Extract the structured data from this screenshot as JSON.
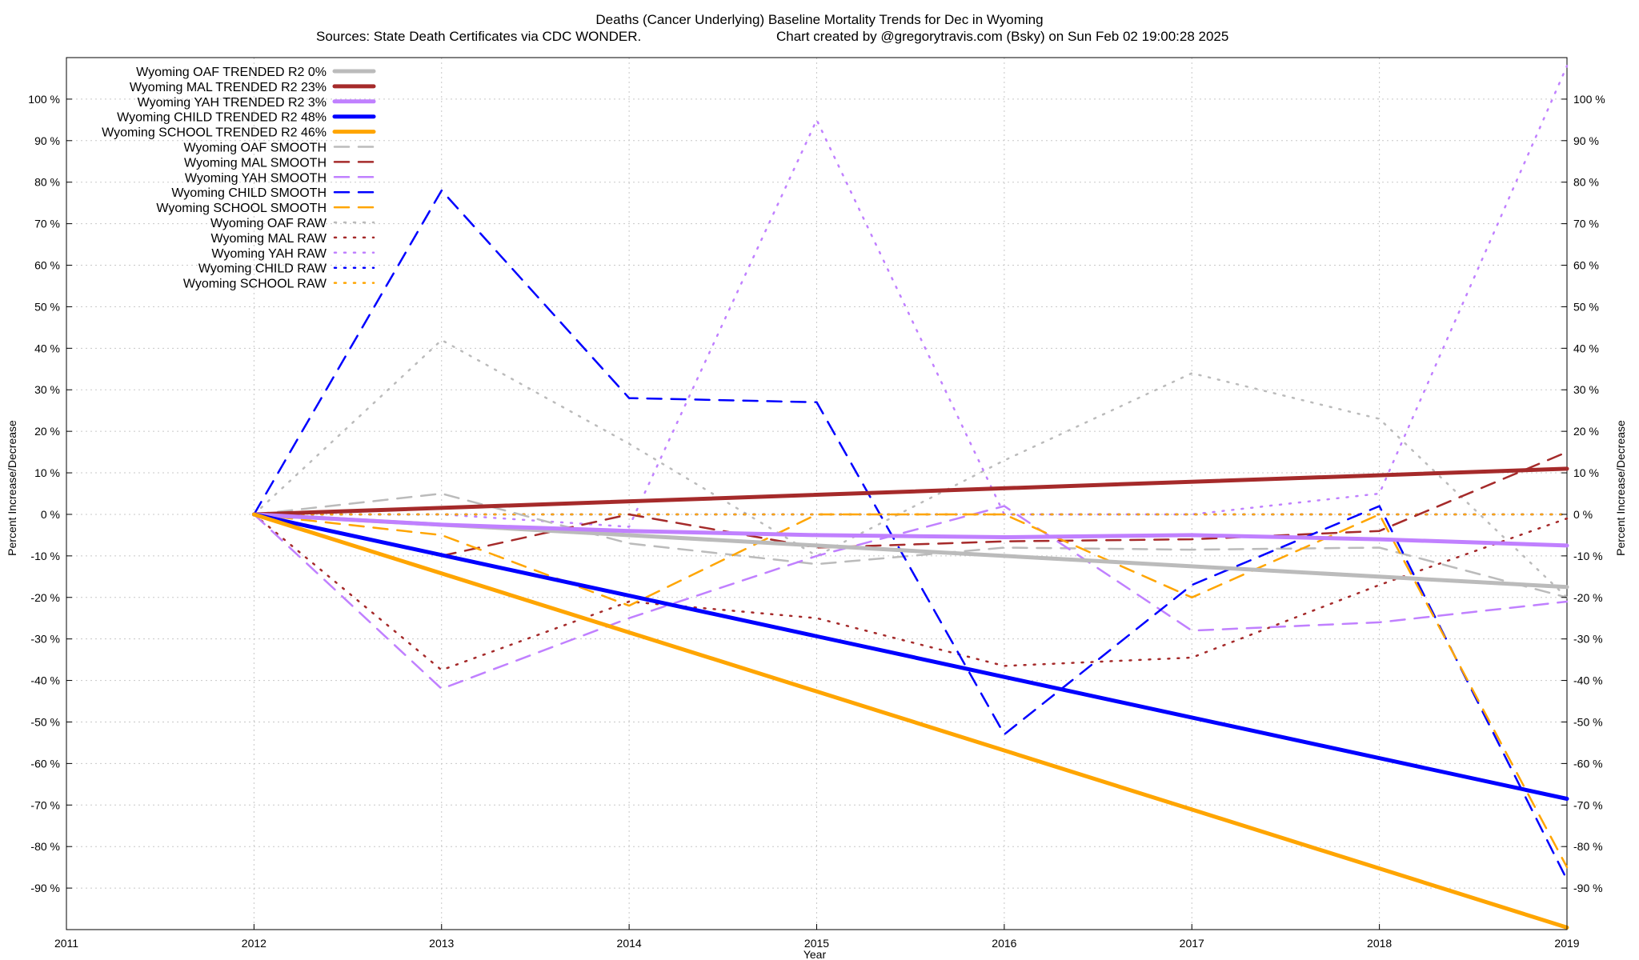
{
  "chart_data": {
    "type": "line",
    "title": "Deaths (Cancer Underlying)  Baseline Mortality Trends for Dec in Wyoming",
    "subtitle_left": "Sources: State Death Certificates via CDC WONDER.",
    "subtitle_right": "Chart created by @gregorytravis.com (Bsky) on Sun Feb 02 19:00:28 2025",
    "xlabel": "Year",
    "ylabel": "Percent Increase/Decrease",
    "xlim": [
      2011,
      2019
    ],
    "ylim": [
      -100,
      110
    ],
    "x_ticks": [
      "2011",
      "2012",
      "2013",
      "2014",
      "2015",
      "2016",
      "2017",
      "2018",
      "2019"
    ],
    "y_ticks": [
      {
        "v": 100,
        "label": "100 %"
      },
      {
        "v": 90,
        "label": "90 %"
      },
      {
        "v": 80,
        "label": "80 %"
      },
      {
        "v": 70,
        "label": "70 %"
      },
      {
        "v": 60,
        "label": "60 %"
      },
      {
        "v": 50,
        "label": "50 %"
      },
      {
        "v": 40,
        "label": "40 %"
      },
      {
        "v": 30,
        "label": "30 %"
      },
      {
        "v": 20,
        "label": "20 %"
      },
      {
        "v": 10,
        "label": "10 %"
      },
      {
        "v": 0,
        "label": "0 %"
      },
      {
        "v": -10,
        "label": "-10 %"
      },
      {
        "v": -20,
        "label": "-20 %"
      },
      {
        "v": -30,
        "label": "-30 %"
      },
      {
        "v": -40,
        "label": "-40 %"
      },
      {
        "v": -50,
        "label": "-50 %"
      },
      {
        "v": -60,
        "label": "-60 %"
      },
      {
        "v": -70,
        "label": "-70 %"
      },
      {
        "v": -80,
        "label": "-80 %"
      },
      {
        "v": -90,
        "label": "-90 %"
      }
    ],
    "grid": true,
    "legend_position": "top-left",
    "series": [
      {
        "name": "Wyoming OAF TRENDED R2  0%",
        "color": "#bbbbbb",
        "style": "solid",
        "x": [
          2012,
          2019
        ],
        "y": [
          0,
          -17.5
        ]
      },
      {
        "name": "Wyoming MAL TRENDED R2  23%",
        "color": "#a52a2a",
        "style": "solid",
        "x": [
          2012,
          2019
        ],
        "y": [
          0,
          11
        ]
      },
      {
        "name": "Wyoming YAH TRENDED R2  3%",
        "color": "#c080ff",
        "style": "solid",
        "x": [
          2012,
          2013,
          2014,
          2015,
          2016,
          2017,
          2018,
          2019
        ],
        "y": [
          0,
          -2.5,
          -4,
          -5,
          -5.5,
          -5,
          -6,
          -7.5
        ]
      },
      {
        "name": "Wyoming CHILD TRENDED R2  48%",
        "color": "#0000ff",
        "style": "solid",
        "x": [
          2012,
          2019
        ],
        "y": [
          0,
          -68.5
        ]
      },
      {
        "name": "Wyoming SCHOOL TRENDED R2  46%",
        "color": "#ffa500",
        "style": "solid",
        "x": [
          2012,
          2019
        ],
        "y": [
          0,
          -99.5
        ]
      },
      {
        "name": "Wyoming OAF SMOOTH",
        "color": "#bbbbbb",
        "style": "dashed",
        "x": [
          2012,
          2013,
          2014,
          2015,
          2016,
          2017,
          2018,
          2019
        ],
        "y": [
          0,
          5,
          -7,
          -12,
          -8,
          -8.5,
          -8,
          -20
        ]
      },
      {
        "name": "Wyoming MAL SMOOTH",
        "color": "#a52a2a",
        "style": "dashed",
        "x": [
          2012,
          2013,
          2014,
          2015,
          2016,
          2017,
          2018,
          2019
        ],
        "y": [
          0,
          -10,
          0,
          -8,
          -6.5,
          -6,
          -4,
          15
        ]
      },
      {
        "name": "Wyoming YAH SMOOTH",
        "color": "#c080ff",
        "style": "dashed",
        "x": [
          2012,
          2013,
          2014,
          2015,
          2016,
          2017,
          2018,
          2019
        ],
        "y": [
          0,
          -42,
          -25,
          -10,
          2,
          -28,
          -26,
          -21
        ]
      },
      {
        "name": "Wyoming CHILD SMOOTH",
        "color": "#0000ff",
        "style": "dashed",
        "x": [
          2012,
          2013,
          2014,
          2015,
          2016,
          2017,
          2018,
          2019
        ],
        "y": [
          0,
          78,
          28,
          27,
          -53,
          -17,
          2,
          -88
        ]
      },
      {
        "name": "Wyoming SCHOOL SMOOTH",
        "color": "#ffa500",
        "style": "dashed",
        "x": [
          2012,
          2013,
          2014,
          2015,
          2016,
          2017,
          2018,
          2019
        ],
        "y": [
          0,
          -5,
          -22,
          0,
          0,
          -20,
          0,
          -85
        ]
      },
      {
        "name": "Wyoming OAF RAW",
        "color": "#bbbbbb",
        "style": "dotted",
        "x": [
          2012,
          2013,
          2014,
          2015,
          2016,
          2017,
          2018,
          2019
        ],
        "y": [
          0,
          42,
          17,
          -10,
          13,
          34,
          23,
          -20
        ]
      },
      {
        "name": "Wyoming MAL RAW",
        "color": "#a52a2a",
        "style": "dotted",
        "x": [
          2012,
          2013,
          2014,
          2015,
          2016,
          2017,
          2018,
          2019
        ],
        "y": [
          0,
          -37.5,
          -21,
          -25,
          -36.5,
          -34.5,
          -17,
          -1
        ]
      },
      {
        "name": "Wyoming YAH RAW",
        "color": "#c080ff",
        "style": "dotted",
        "x": [
          2012,
          2013,
          2014,
          2015,
          2016,
          2017,
          2018,
          2019
        ],
        "y": [
          0,
          0,
          -3,
          95,
          0,
          0,
          5,
          108
        ]
      },
      {
        "name": "Wyoming CHILD RAW",
        "color": "#0000ff",
        "style": "dotted",
        "x": [
          2012,
          2013,
          2014,
          2015,
          2016,
          2017,
          2018,
          2019
        ],
        "y": [
          0,
          0,
          0,
          0,
          0,
          0,
          0,
          0
        ]
      },
      {
        "name": "Wyoming SCHOOL RAW",
        "color": "#ffa500",
        "style": "dotted",
        "x": [
          2012,
          2013,
          2014,
          2015,
          2016,
          2017,
          2018,
          2019
        ],
        "y": [
          0,
          0,
          0,
          0,
          0,
          0,
          0,
          0
        ]
      }
    ]
  }
}
